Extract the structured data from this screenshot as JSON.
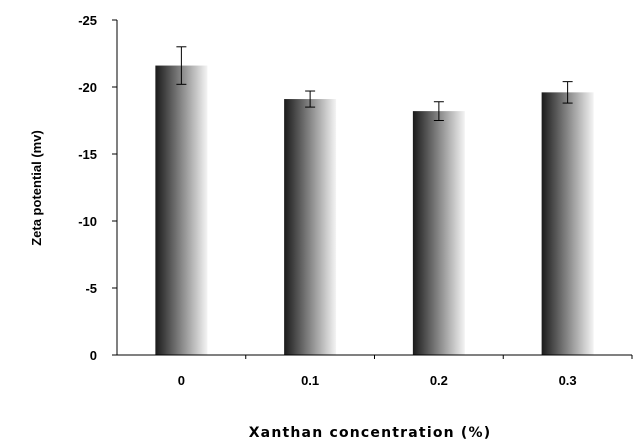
{
  "chart_data": {
    "type": "bar",
    "categories": [
      "0",
      "0.1",
      "0.2",
      "0.3"
    ],
    "values": [
      -21.6,
      -19.1,
      -18.2,
      -19.6
    ],
    "errors": [
      1.4,
      0.6,
      0.7,
      0.8
    ],
    "title": "",
    "xlabel": "Xanthan concentration (%)",
    "ylabel": "Zeta potential (mv)",
    "ylim": [
      0,
      -25
    ],
    "yticks": [
      0,
      -5,
      -10,
      -15,
      -20,
      -25
    ],
    "ytick_labels": [
      "0",
      "-5",
      "-10",
      "-15",
      "-20",
      "-25"
    ],
    "grid": false,
    "legend": "none",
    "bar_fill": "gradient dark-to-light, left-to-right",
    "colors": {
      "bar_dark": "#1a1a1a",
      "bar_light": "#f4f4f4",
      "axis": "#000000"
    }
  }
}
